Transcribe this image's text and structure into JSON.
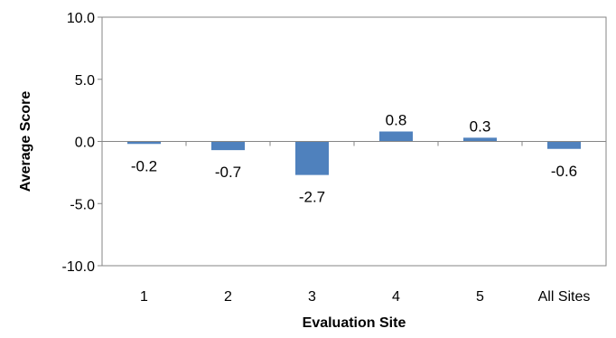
{
  "chart_data": {
    "type": "bar",
    "title": "",
    "xlabel": "Evaluation Site",
    "ylabel": "Average Score",
    "categories": [
      "1",
      "2",
      "3",
      "4",
      "5",
      "All Sites"
    ],
    "values": [
      -0.2,
      -0.7,
      -2.7,
      0.8,
      0.3,
      -0.6
    ],
    "data_labels": [
      "-0.2",
      "-0.7",
      "-2.7",
      "0.8",
      "0.3",
      "-0.6"
    ],
    "ylim": [
      -10,
      10
    ],
    "yticks": [
      10,
      5,
      0,
      -5,
      -10
    ],
    "ytick_labels": [
      "10.0",
      "5.0",
      "0.0",
      "-5.0",
      "-10.0"
    ],
    "grid": false,
    "legend": "none",
    "bar_color": "#4F81BD"
  }
}
